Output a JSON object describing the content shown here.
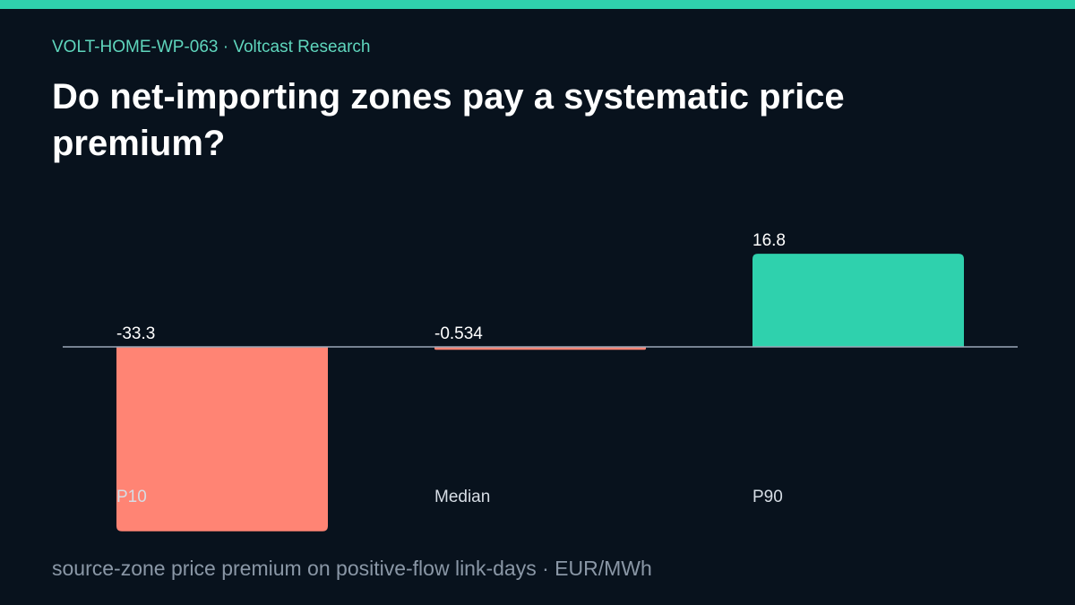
{
  "header": {
    "kicker": "VOLT-HOME-WP-063 · Voltcast Research",
    "title": "Do net-importing zones pay a systematic price premium?"
  },
  "colors": {
    "accent": "#2fd1ad",
    "negative": "#ff8474",
    "positive": "#2fd1ad",
    "background": "#08121d",
    "baseline": "#9aa8b8"
  },
  "chart_data": {
    "type": "bar",
    "categories": [
      "P10",
      "Median",
      "P90"
    ],
    "values": [
      -33.3,
      -0.534,
      16.8
    ],
    "value_labels": [
      "-33.3",
      "-0.534",
      "16.8"
    ],
    "ylim": [
      -33.3,
      16.8
    ],
    "grid": false,
    "legend": "none",
    "caption": "source-zone price premium on positive-flow link-days · EUR/MWh"
  }
}
